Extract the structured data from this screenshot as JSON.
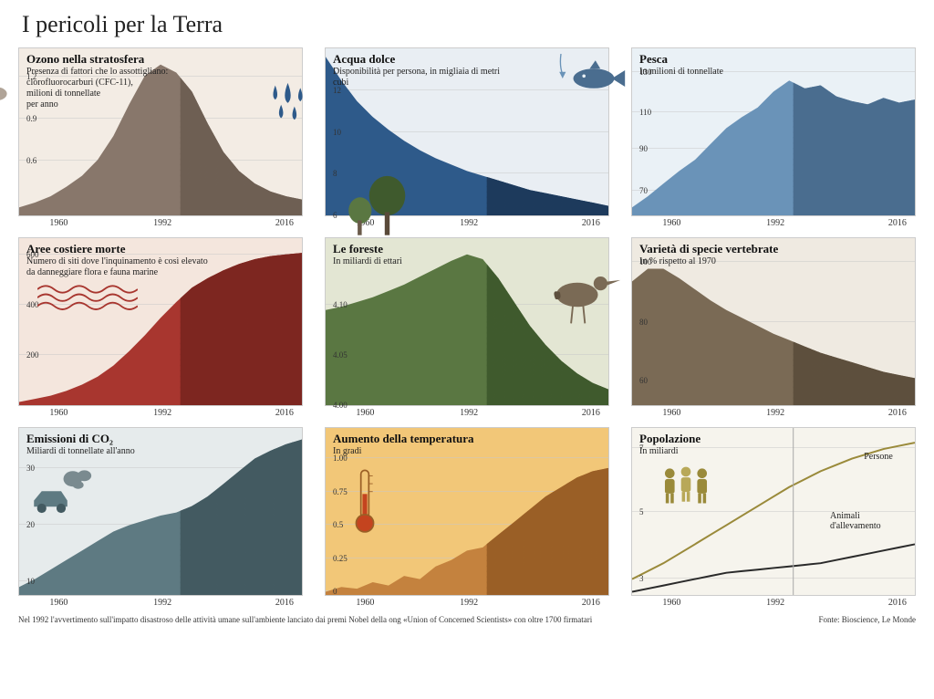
{
  "main_title": "I pericoli per la Terra",
  "xaxis_labels": [
    "1960",
    "1992",
    "2016"
  ],
  "footer_left": "Nel 1992 l'avvertimento sull'impatto disastroso delle attività umane sull'ambiente lanciato dai premi Nobel della ong «Union of Concerned Scientists» con oltre 1700 firmatari",
  "footer_right": "Fonte: Bioscience, Le Monde",
  "split_year_frac": 0.57,
  "panels": [
    {
      "id": "ozone",
      "title": "Ozono nella stratosfera",
      "subtitle": "Presenza di fattori che lo assottigliano:\nclorofluorocarburi (CFC-11),\nmilioni di tonnellate\nper anno",
      "bg": "#f3ece4",
      "fill": "#88776b",
      "fill2": "#6e5f53",
      "yticks": [
        {
          "v": 0.6,
          "y": 0.33
        },
        {
          "v": 0.9,
          "y": 0.58
        },
        {
          "v": 1.2,
          "y": 0.83
        }
      ],
      "type": "area",
      "data_norm": [
        0.05,
        0.08,
        0.12,
        0.18,
        0.25,
        0.35,
        0.5,
        0.7,
        0.88,
        0.95,
        0.9,
        0.78,
        0.58,
        0.4,
        0.28,
        0.2,
        0.15,
        0.12,
        0.1
      ],
      "icon": "clouds"
    },
    {
      "id": "freshwater",
      "title": "Acqua dolce",
      "subtitle": "Disponibilità per persona, in migliaia di metri cubi",
      "bg": "#e9eef3",
      "fill": "#2e5a8a",
      "fill2": "#1d3a5c",
      "yticks": [
        {
          "v": 6,
          "y": 0.0
        },
        {
          "v": 8,
          "y": 0.25
        },
        {
          "v": 10,
          "y": 0.5
        },
        {
          "v": 12,
          "y": 0.75
        }
      ],
      "type": "area",
      "data_norm": [
        1.0,
        0.85,
        0.72,
        0.62,
        0.54,
        0.47,
        0.41,
        0.36,
        0.32,
        0.28,
        0.25,
        0.22,
        0.19,
        0.16,
        0.14,
        0.12,
        0.1,
        0.08,
        0.06
      ],
      "icon": "drops"
    },
    {
      "id": "fishing",
      "title": "Pesca",
      "subtitle": "In milioni di tonnellate",
      "bg": "#eaf1f6",
      "fill": "#6a93b8",
      "fill2": "#4a6d8f",
      "yticks": [
        {
          "v": 70,
          "y": 0.15
        },
        {
          "v": 90,
          "y": 0.4
        },
        {
          "v": 110,
          "y": 0.62
        },
        {
          "v": 130,
          "y": 0.86
        }
      ],
      "type": "area",
      "data_norm": [
        0.05,
        0.12,
        0.2,
        0.28,
        0.35,
        0.45,
        0.55,
        0.62,
        0.68,
        0.78,
        0.85,
        0.8,
        0.82,
        0.75,
        0.72,
        0.7,
        0.74,
        0.71,
        0.73
      ],
      "icon": "fish"
    },
    {
      "id": "deadzones",
      "title": "Aree costiere morte",
      "subtitle": "Numero di siti dove l'inquinamento è così elevato\nda danneggiare flora e fauna marine",
      "bg": "#f4e6dd",
      "fill": "#a8362f",
      "fill2": "#7d2620",
      "yticks": [
        {
          "v": 200,
          "y": 0.3
        },
        {
          "v": 400,
          "y": 0.6
        },
        {
          "v": 600,
          "y": 0.9
        }
      ],
      "type": "area",
      "data_norm": [
        0.02,
        0.04,
        0.06,
        0.09,
        0.13,
        0.18,
        0.25,
        0.34,
        0.44,
        0.55,
        0.65,
        0.74,
        0.8,
        0.85,
        0.89,
        0.92,
        0.94,
        0.95,
        0.96
      ],
      "icon": "waves"
    },
    {
      "id": "forests",
      "title": "Le foreste",
      "subtitle": "In miliardi di ettari",
      "bg": "#e3e6d3",
      "fill": "#5a7742",
      "fill2": "#3f5a2d",
      "yticks": [
        {
          "v": "4.00",
          "y": 0.0
        },
        {
          "v": "4.05",
          "y": 0.3
        },
        {
          "v": "4.10",
          "y": 0.6
        }
      ],
      "type": "area",
      "data_norm": [
        0.6,
        0.62,
        0.65,
        0.68,
        0.72,
        0.76,
        0.81,
        0.86,
        0.91,
        0.95,
        0.92,
        0.8,
        0.65,
        0.5,
        0.38,
        0.28,
        0.2,
        0.14,
        0.1
      ],
      "icon": "trees"
    },
    {
      "id": "species",
      "title": "Varietà di specie vertebrate",
      "subtitle": "In % rispetto al 1970",
      "bg": "#efeae1",
      "fill": "#7a6a55",
      "fill2": "#5d4f3d",
      "yticks": [
        {
          "v": 60,
          "y": 0.15
        },
        {
          "v": 80,
          "y": 0.5
        },
        {
          "v": 100,
          "y": 0.86
        }
      ],
      "type": "area",
      "data_norm": [
        0.78,
        0.86,
        0.86,
        0.8,
        0.73,
        0.66,
        0.6,
        0.55,
        0.5,
        0.45,
        0.41,
        0.37,
        0.33,
        0.3,
        0.27,
        0.24,
        0.21,
        0.19,
        0.17
      ],
      "icon": "bird"
    },
    {
      "id": "co2",
      "title": "Emissioni di CO₂",
      "subtitle": "Miliardi di tonnellate all'anno",
      "bg": "#e6ebec",
      "fill": "#5e7a82",
      "fill2": "#435a61",
      "yticks": [
        {
          "v": 10,
          "y": 0.08
        },
        {
          "v": 20,
          "y": 0.42
        },
        {
          "v": 30,
          "y": 0.76
        }
      ],
      "type": "area",
      "data_norm": [
        0.05,
        0.1,
        0.16,
        0.22,
        0.28,
        0.34,
        0.4,
        0.44,
        0.47,
        0.5,
        0.52,
        0.56,
        0.62,
        0.7,
        0.78,
        0.86,
        0.91,
        0.95,
        0.98
      ],
      "icon": "car"
    },
    {
      "id": "temp",
      "title": "Aumento della temperatura",
      "subtitle": "In gradi",
      "bg": "#f2c778",
      "fill": "#c4823e",
      "fill2": "#9a5f26",
      "yticks": [
        {
          "v": 0,
          "y": 0.02
        },
        {
          "v": 0.25,
          "y": 0.22
        },
        {
          "v": 0.5,
          "y": 0.42
        },
        {
          "v": 0.75,
          "y": 0.62
        },
        {
          "v": "1.00",
          "y": 0.82
        }
      ],
      "type": "area",
      "data_norm": [
        0.02,
        0.05,
        0.04,
        0.08,
        0.06,
        0.12,
        0.1,
        0.18,
        0.22,
        0.28,
        0.3,
        0.38,
        0.46,
        0.54,
        0.62,
        0.68,
        0.74,
        0.78,
        0.8
      ],
      "icon": "thermo"
    },
    {
      "id": "population",
      "title": "Popolazione",
      "subtitle": "In miliardi",
      "bg": "#f6f4ed",
      "fill": "none",
      "fill2": "none",
      "yticks": [
        {
          "v": 3,
          "y": 0.1
        },
        {
          "v": 5,
          "y": 0.5
        },
        {
          "v": 7,
          "y": 0.88
        }
      ],
      "type": "lines",
      "series": [
        {
          "label": "Persone",
          "color": "#9a8a3a",
          "width": 2,
          "data_norm": [
            0.1,
            0.15,
            0.2,
            0.26,
            0.32,
            0.38,
            0.44,
            0.5,
            0.56,
            0.62,
            0.68,
            0.73,
            0.78,
            0.82,
            0.86,
            0.89,
            0.92,
            0.94,
            0.96
          ],
          "label_x": 0.82,
          "label_y": 0.8
        },
        {
          "label": "Animali\nd'allevamento",
          "color": "#2a2a2a",
          "width": 2,
          "data_norm": [
            0.02,
            0.04,
            0.06,
            0.08,
            0.1,
            0.12,
            0.14,
            0.15,
            0.16,
            0.17,
            0.18,
            0.19,
            0.2,
            0.22,
            0.24,
            0.26,
            0.28,
            0.3,
            0.32
          ],
          "label_x": 0.7,
          "label_y": 0.38
        }
      ],
      "icon": "people"
    }
  ]
}
